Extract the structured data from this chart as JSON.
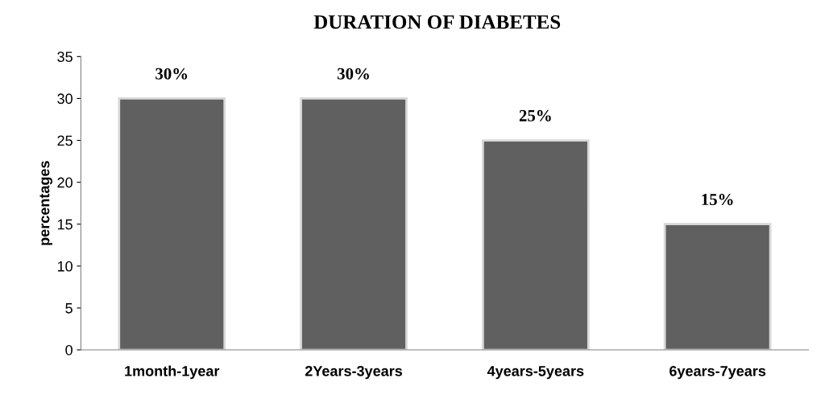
{
  "chart_data": {
    "type": "bar",
    "title": "DURATION OF DIABETES",
    "ylabel": "percentages",
    "categories": [
      "1month-1year",
      "2Years-3years",
      "4years-5years",
      "6years-7years"
    ],
    "values": [
      30,
      30,
      25,
      15
    ],
    "color": "#606060",
    "value_labels": [
      "30%",
      "30%",
      "25%",
      "15%"
    ],
    "ylim": [
      0,
      35
    ],
    "yticks": [
      0,
      5,
      10,
      15,
      20,
      25,
      30,
      35
    ],
    "grid": false,
    "legend": false
  }
}
